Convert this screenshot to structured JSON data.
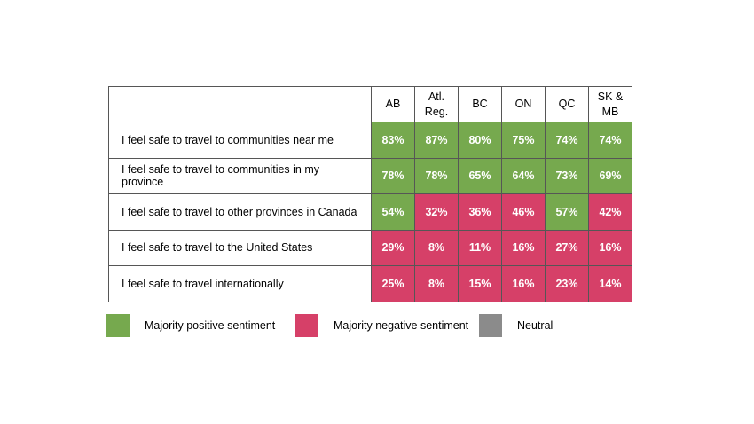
{
  "table": {
    "columns": [
      "AB",
      "Atl. Reg.",
      "BC",
      "ON",
      "QC",
      "SK & MB"
    ],
    "rows": [
      {
        "label": "I feel safe to travel to communities near me",
        "values": [
          "83%",
          "87%",
          "80%",
          "75%",
          "74%",
          "74%"
        ],
        "sentiments": [
          "positive",
          "positive",
          "positive",
          "positive",
          "positive",
          "positive"
        ],
        "colors": [
          "#76a94e",
          "#76a94e",
          "#76a94e",
          "#76a94e",
          "#76a94e",
          "#76a94e"
        ]
      },
      {
        "label": "I feel safe to travel to communities in my province",
        "values": [
          "78%",
          "78%",
          "65%",
          "64%",
          "73%",
          "69%"
        ],
        "sentiments": [
          "positive",
          "positive",
          "positive",
          "positive",
          "positive",
          "positive"
        ],
        "colors": [
          "#76a94e",
          "#76a94e",
          "#76a94e",
          "#76a94e",
          "#76a94e",
          "#76a94e"
        ]
      },
      {
        "label": "I feel safe to travel to other provinces in Canada",
        "values": [
          "54%",
          "32%",
          "36%",
          "46%",
          "57%",
          "42%"
        ],
        "sentiments": [
          "positive",
          "negative",
          "negative",
          "negative",
          "positive",
          "negative"
        ],
        "colors": [
          "#76a94e",
          "#d64068",
          "#d64068",
          "#d64068",
          "#76a94e",
          "#d64068"
        ]
      },
      {
        "label": "I feel safe to travel to the United States",
        "values": [
          "29%",
          "8%",
          "11%",
          "16%",
          "27%",
          "16%"
        ],
        "sentiments": [
          "negative",
          "negative",
          "negative",
          "negative",
          "negative",
          "negative"
        ],
        "colors": [
          "#d64068",
          "#d64068",
          "#d64068",
          "#d64068",
          "#d64068",
          "#d64068"
        ]
      },
      {
        "label": "I feel safe to travel internationally",
        "values": [
          "25%",
          "8%",
          "15%",
          "16%",
          "23%",
          "14%"
        ],
        "sentiments": [
          "negative",
          "negative",
          "negative",
          "negative",
          "negative",
          "negative"
        ],
        "colors": [
          "#d64068",
          "#d64068",
          "#d64068",
          "#d64068",
          "#d64068",
          "#d64068"
        ]
      }
    ]
  },
  "legend": {
    "items": [
      {
        "label": "Majority positive sentiment",
        "color": "#76a94e"
      },
      {
        "label": "Majority negative sentiment",
        "color": "#d64068"
      },
      {
        "label": "Neutral",
        "color": "#8b8b8b"
      }
    ]
  },
  "chart_data": {
    "type": "heatmap",
    "x_labels": [
      "AB",
      "Atl. Reg.",
      "BC",
      "ON",
      "QC",
      "SK & MB"
    ],
    "y_labels": [
      "I feel safe to travel to communities near me",
      "I feel safe to travel to communities in my province",
      "I feel safe to travel to other provinces in Canada",
      "I feel safe to travel to the United States",
      "I feel safe to travel internationally"
    ],
    "values_percent": [
      [
        83,
        87,
        80,
        75,
        74,
        74
      ],
      [
        78,
        78,
        65,
        64,
        73,
        69
      ],
      [
        54,
        32,
        36,
        46,
        57,
        42
      ],
      [
        29,
        8,
        11,
        16,
        27,
        16
      ],
      [
        25,
        8,
        15,
        16,
        23,
        14
      ]
    ],
    "cell_sentiment": [
      [
        "positive",
        "positive",
        "positive",
        "positive",
        "positive",
        "positive"
      ],
      [
        "positive",
        "positive",
        "positive",
        "positive",
        "positive",
        "positive"
      ],
      [
        "positive",
        "negative",
        "negative",
        "negative",
        "positive",
        "negative"
      ],
      [
        "negative",
        "negative",
        "negative",
        "negative",
        "negative",
        "negative"
      ],
      [
        "negative",
        "negative",
        "negative",
        "negative",
        "negative",
        "negative"
      ]
    ],
    "legend": [
      {
        "label": "Majority positive sentiment",
        "color": "#76a94e"
      },
      {
        "label": "Majority negative sentiment",
        "color": "#d64068"
      },
      {
        "label": "Neutral",
        "color": "#8b8b8b"
      }
    ],
    "legend_position": "bottom",
    "grid": true
  }
}
